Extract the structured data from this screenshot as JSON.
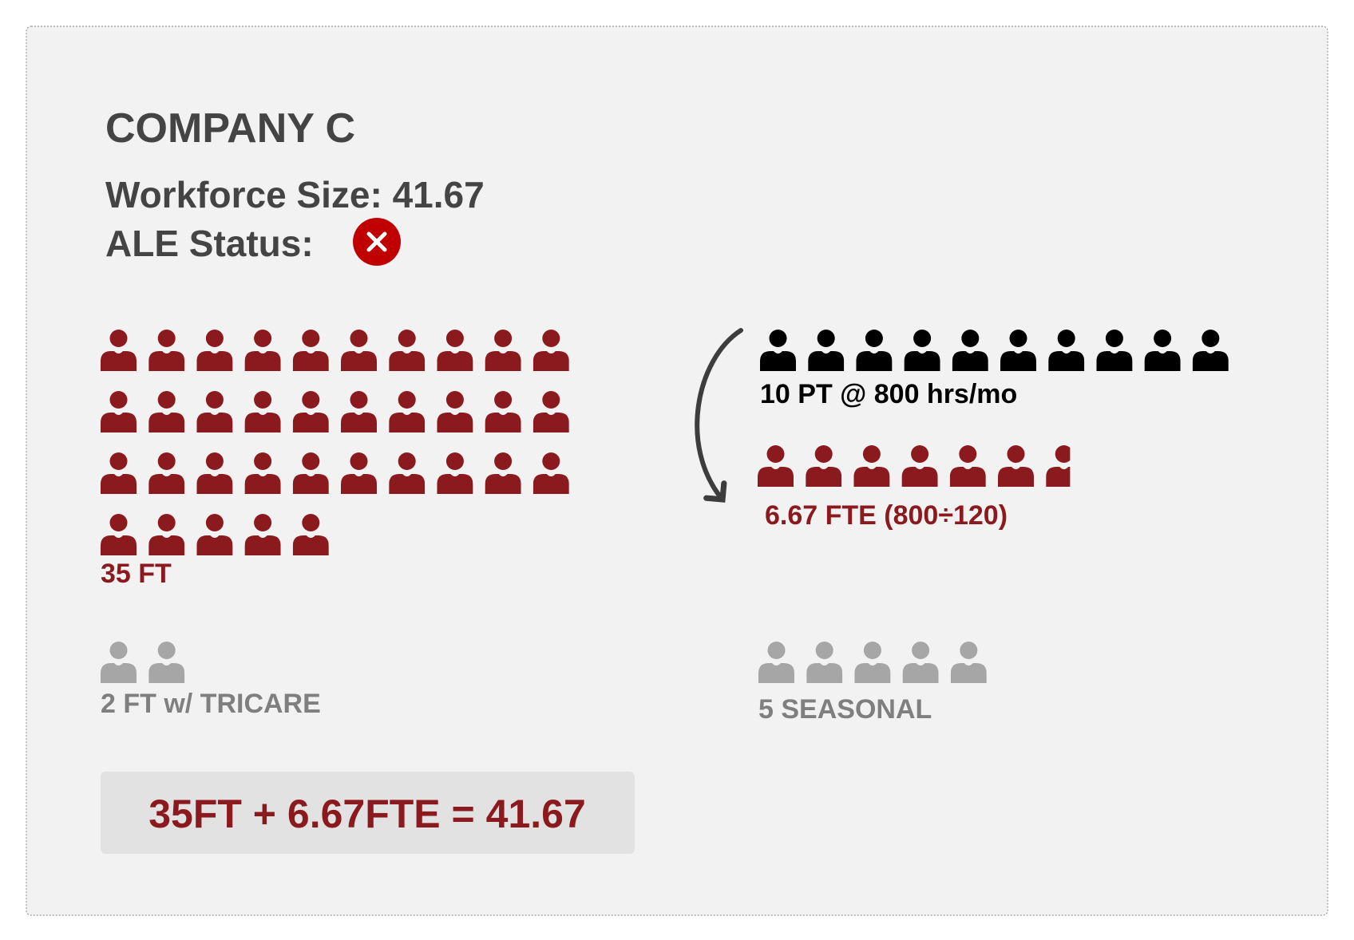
{
  "header": {
    "title": "COMPANY C",
    "workforce": "Workforce Size: 41.67",
    "ale": "ALE Status:"
  },
  "groups": [
    {
      "label": "35 FT",
      "count": 35,
      "color": "#8b1a1f"
    },
    {
      "label": "10 PT @ 800 hrs/mo",
      "count": 10,
      "color": "#000000"
    },
    {
      "label": "6.67 FTE (800÷120)",
      "count": 6.67,
      "color": "#8b1a1f"
    },
    {
      "label": "2 FT w/ TRICARE",
      "count": 2,
      "color": "#a6a6a6"
    },
    {
      "label": "5 SEASONAL",
      "count": 5,
      "color": "#a6a6a6"
    }
  ],
  "formula": "35FT + 6.67FTE = 41.67"
}
